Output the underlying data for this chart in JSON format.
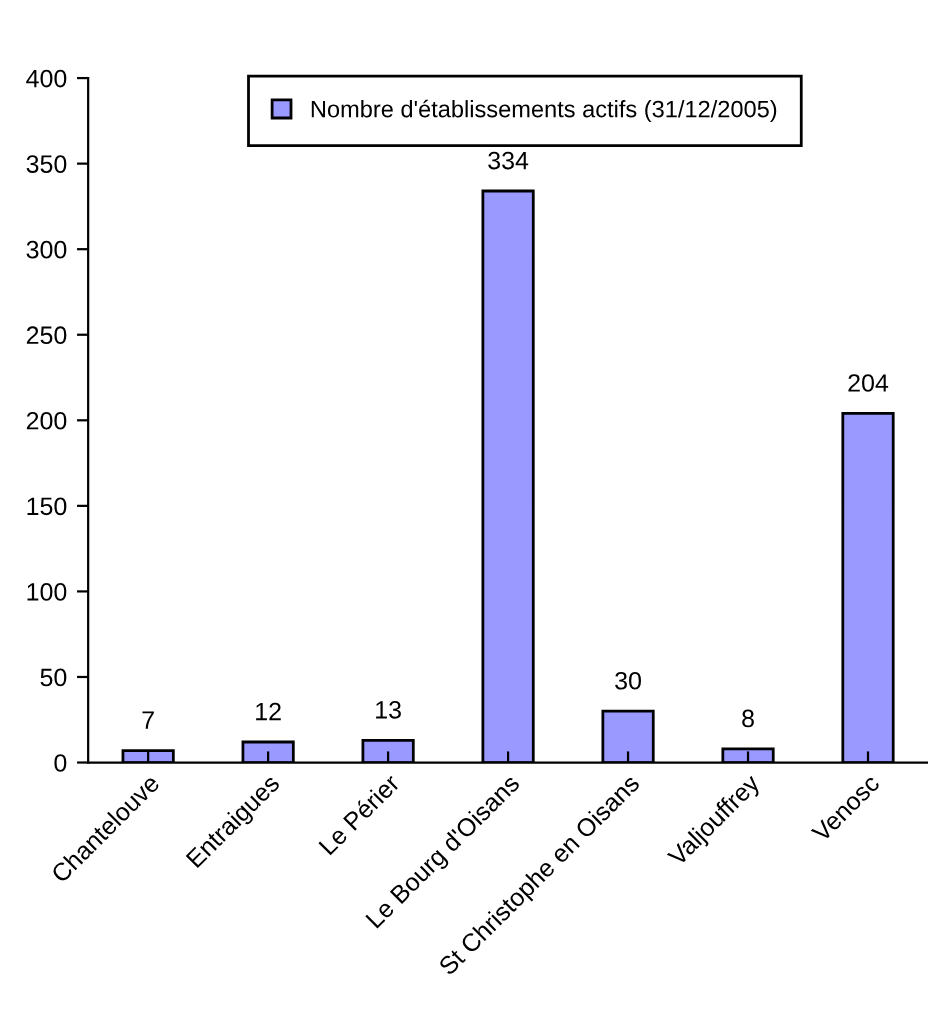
{
  "chart_data": {
    "type": "bar",
    "categories": [
      "Chantelouve",
      "Entraigues",
      "Le Périer",
      "Le Bourg d'Oisans",
      "St Christophe en Oisans",
      "Valjouffrey",
      "Venosc"
    ],
    "series": [
      {
        "name": "Nombre d'établissements actifs (31/12/2005)",
        "color": "#9999ff",
        "values": [
          7,
          12,
          13,
          334,
          30,
          8,
          204
        ]
      }
    ],
    "ylim": [
      0,
      400
    ],
    "yticks": [
      0,
      50,
      100,
      150,
      200,
      250,
      300,
      350,
      400
    ],
    "grid": false,
    "legend": "top",
    "data_labels": true
  }
}
